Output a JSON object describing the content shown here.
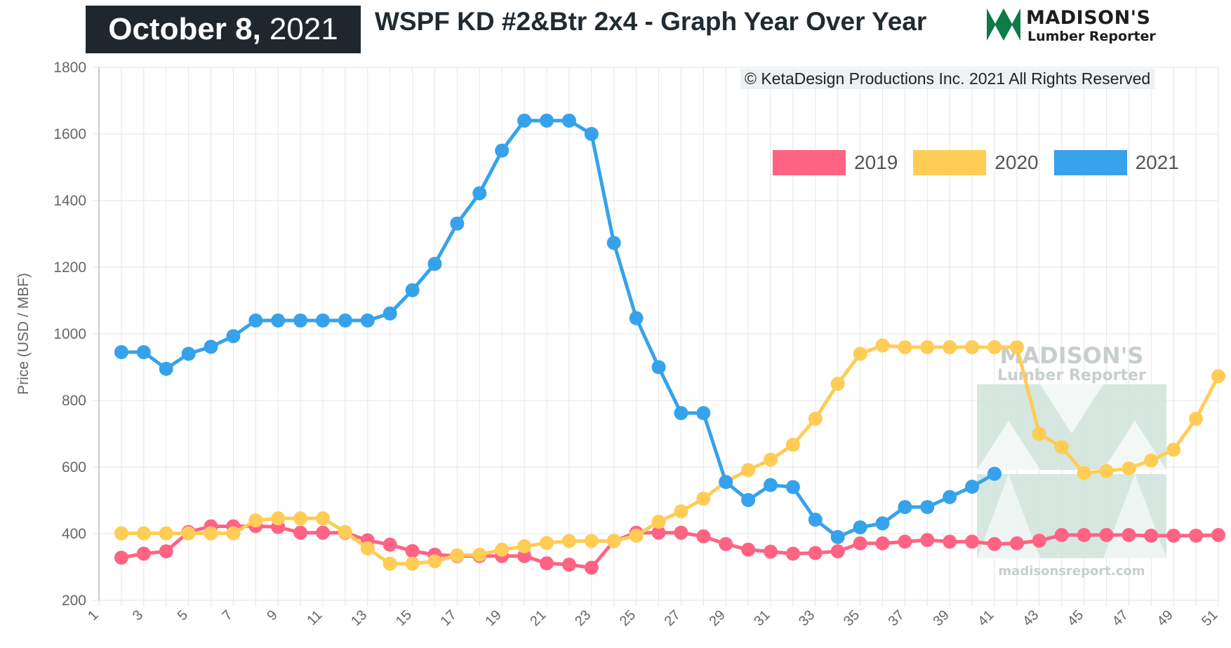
{
  "header": {
    "date_main": "October 8,",
    "date_year": "2021",
    "title": "WSPF KD #2&Btr 2x4 - Graph Year Over Year",
    "logo_name": "MADISON'S",
    "logo_sub": "Lumber Reporter"
  },
  "copyright": "© KetaDesign Productions Inc. 2021 All Rights Reserved",
  "watermark": {
    "name": "MADISON'S",
    "sub": "Lumber Reporter",
    "url": "madisonsreport.com"
  },
  "colors": {
    "2019": "#ff6384",
    "2020": "#ffcd56",
    "2021": "#36a2eb",
    "grid": "#e5e5e5",
    "axis_text": "#666666",
    "brand_green": "#0e7a46"
  },
  "chart_data": {
    "type": "line",
    "title": "WSPF KD #2&Btr 2x4 - Graph Year Over Year",
    "xlabel": "",
    "ylabel": "Price (USD / MBF)",
    "xlim": [
      1,
      51
    ],
    "ylim": [
      200,
      1800
    ],
    "yticks": [
      200,
      400,
      600,
      800,
      1000,
      1200,
      1400,
      1600,
      1800
    ],
    "xticks": [
      1,
      3,
      5,
      7,
      9,
      11,
      13,
      15,
      17,
      19,
      21,
      23,
      25,
      27,
      29,
      31,
      33,
      35,
      37,
      39,
      41,
      43,
      45,
      47,
      49,
      51
    ],
    "grid": true,
    "legend_position": "top-right",
    "series": [
      {
        "name": "2019",
        "color": "#ff6384",
        "x": [
          2,
          3,
          4,
          5,
          6,
          7,
          8,
          9,
          10,
          11,
          12,
          13,
          14,
          15,
          16,
          17,
          18,
          19,
          20,
          21,
          22,
          23,
          24,
          25,
          26,
          27,
          28,
          29,
          30,
          31,
          32,
          33,
          34,
          35,
          36,
          37,
          38,
          39,
          40,
          41,
          42,
          43,
          44,
          45,
          46,
          47,
          48,
          49,
          50,
          51
        ],
        "y": [
          328,
          340,
          347,
          405,
          422,
          422,
          423,
          420,
          403,
          403,
          403,
          380,
          367,
          348,
          337,
          333,
          333,
          333,
          333,
          311,
          307,
          298,
          378,
          403,
          403,
          403,
          392,
          369,
          352,
          346,
          340,
          342,
          347,
          371,
          371,
          376,
          381,
          376,
          376,
          369,
          371,
          379,
          396,
          396,
          396,
          396,
          394,
          394,
          394,
          396
        ]
      },
      {
        "name": "2020",
        "color": "#ffcd56",
        "x": [
          2,
          3,
          4,
          5,
          6,
          7,
          8,
          9,
          10,
          11,
          12,
          13,
          14,
          15,
          16,
          17,
          18,
          19,
          20,
          21,
          22,
          23,
          24,
          25,
          26,
          27,
          28,
          29,
          30,
          31,
          32,
          33,
          34,
          35,
          36,
          37,
          38,
          39,
          40,
          41,
          42,
          43,
          44,
          45,
          46,
          47,
          48,
          49,
          50,
          51
        ],
        "y": [
          401,
          401,
          401,
          401,
          401,
          401,
          440,
          446,
          446,
          446,
          405,
          356,
          310,
          310,
          317,
          335,
          337,
          352,
          362,
          372,
          378,
          378,
          378,
          394,
          436,
          467,
          505,
          556,
          591,
          622,
          667,
          745,
          850,
          940,
          965,
          960,
          960,
          960,
          960,
          960,
          960,
          700,
          660,
          582,
          588,
          596,
          620,
          652,
          745,
          873
        ]
      },
      {
        "name": "2021",
        "color": "#36a2eb",
        "x": [
          2,
          3,
          4,
          5,
          6,
          7,
          8,
          9,
          10,
          11,
          12,
          13,
          14,
          15,
          16,
          17,
          18,
          19,
          20,
          21,
          22,
          23,
          24,
          25,
          26,
          27,
          28,
          29,
          30,
          31,
          32,
          33,
          34,
          35,
          36,
          37,
          38,
          39,
          40,
          41
        ],
        "y": [
          945,
          945,
          895,
          940,
          961,
          993,
          1040,
          1040,
          1040,
          1040,
          1040,
          1040,
          1061,
          1131,
          1210,
          1331,
          1422,
          1550,
          1640,
          1640,
          1640,
          1600,
          1273,
          1047,
          900,
          762,
          762,
          555,
          501,
          546,
          540,
          442,
          390,
          419,
          431,
          480,
          480,
          510,
          541,
          580
        ]
      }
    ]
  }
}
